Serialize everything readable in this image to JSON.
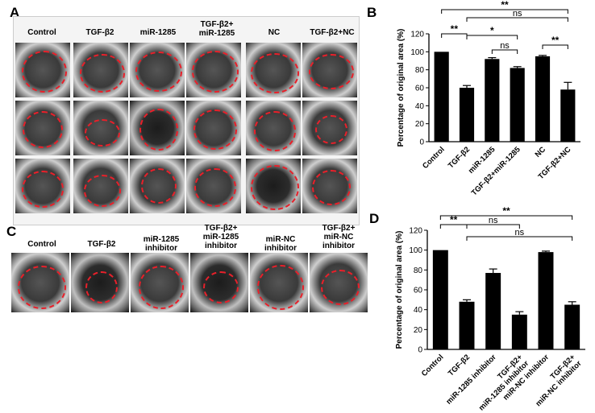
{
  "panels": {
    "a": "A",
    "b": "B",
    "c": "C",
    "d": "D"
  },
  "photo_a_columns": [
    "Control",
    "TGF-β2",
    "miR-1285",
    "TGF-β2+\nmiR-1285",
    "NC",
    "TGF-β2+NC"
  ],
  "photo_c_columns": [
    "Control",
    "TGF-β2",
    "miR-1285\ninhibitor",
    "TGF-β2+\nmiR-1285\ninhibitor",
    "miR-NC\ninhibitor",
    "TGF-β2+\nmiR-NC\ninhibitor"
  ],
  "chart_data": [
    {
      "id": "B",
      "type": "bar",
      "ylabel": "Percentage of original area (%)",
      "ylim": [
        0,
        120
      ],
      "yticks": [
        0,
        20,
        40,
        60,
        80,
        100,
        120
      ],
      "categories": [
        "Control",
        "TGF-β2",
        "miR-1285",
        "TGF-β2+miR-1285",
        "NC",
        "TGF-β2+NC"
      ],
      "values": [
        100,
        60,
        92,
        82,
        95,
        58
      ],
      "errors": [
        0,
        2.5,
        1.5,
        1.5,
        1,
        8
      ],
      "significance": [
        {
          "from": 0,
          "to": 1,
          "label": "**"
        },
        {
          "from": 1,
          "to": 3,
          "label": "*"
        },
        {
          "from": 2,
          "to": 3,
          "label": "ns"
        },
        {
          "from": 4,
          "to": 5,
          "label": "**"
        },
        {
          "from": 1,
          "to": 5,
          "label": "ns"
        },
        {
          "from": 0,
          "to": 5,
          "label": "**"
        }
      ]
    },
    {
      "id": "D",
      "type": "bar",
      "ylabel": "Percentage of original area (%)",
      "ylim": [
        0,
        120
      ],
      "yticks": [
        0,
        20,
        40,
        60,
        80,
        100,
        120
      ],
      "categories": [
        "Control",
        "TGF-β2",
        "miR-1285 inhibitor",
        "TGF-β2+\nmiR-1285 inhibitor",
        "miR-NC inhibitor",
        "TGF-β2+\nmiR-NC inhibitor"
      ],
      "values": [
        100,
        48,
        77,
        35,
        98,
        45
      ],
      "errors": [
        0,
        2,
        4,
        3,
        1,
        3
      ],
      "significance": [
        {
          "from": 0,
          "to": 1,
          "label": "**"
        },
        {
          "from": 1,
          "to": 3,
          "label": "ns"
        },
        {
          "from": 1,
          "to": 5,
          "label": "ns"
        },
        {
          "from": 0,
          "to": 5,
          "label": "**"
        }
      ]
    }
  ]
}
